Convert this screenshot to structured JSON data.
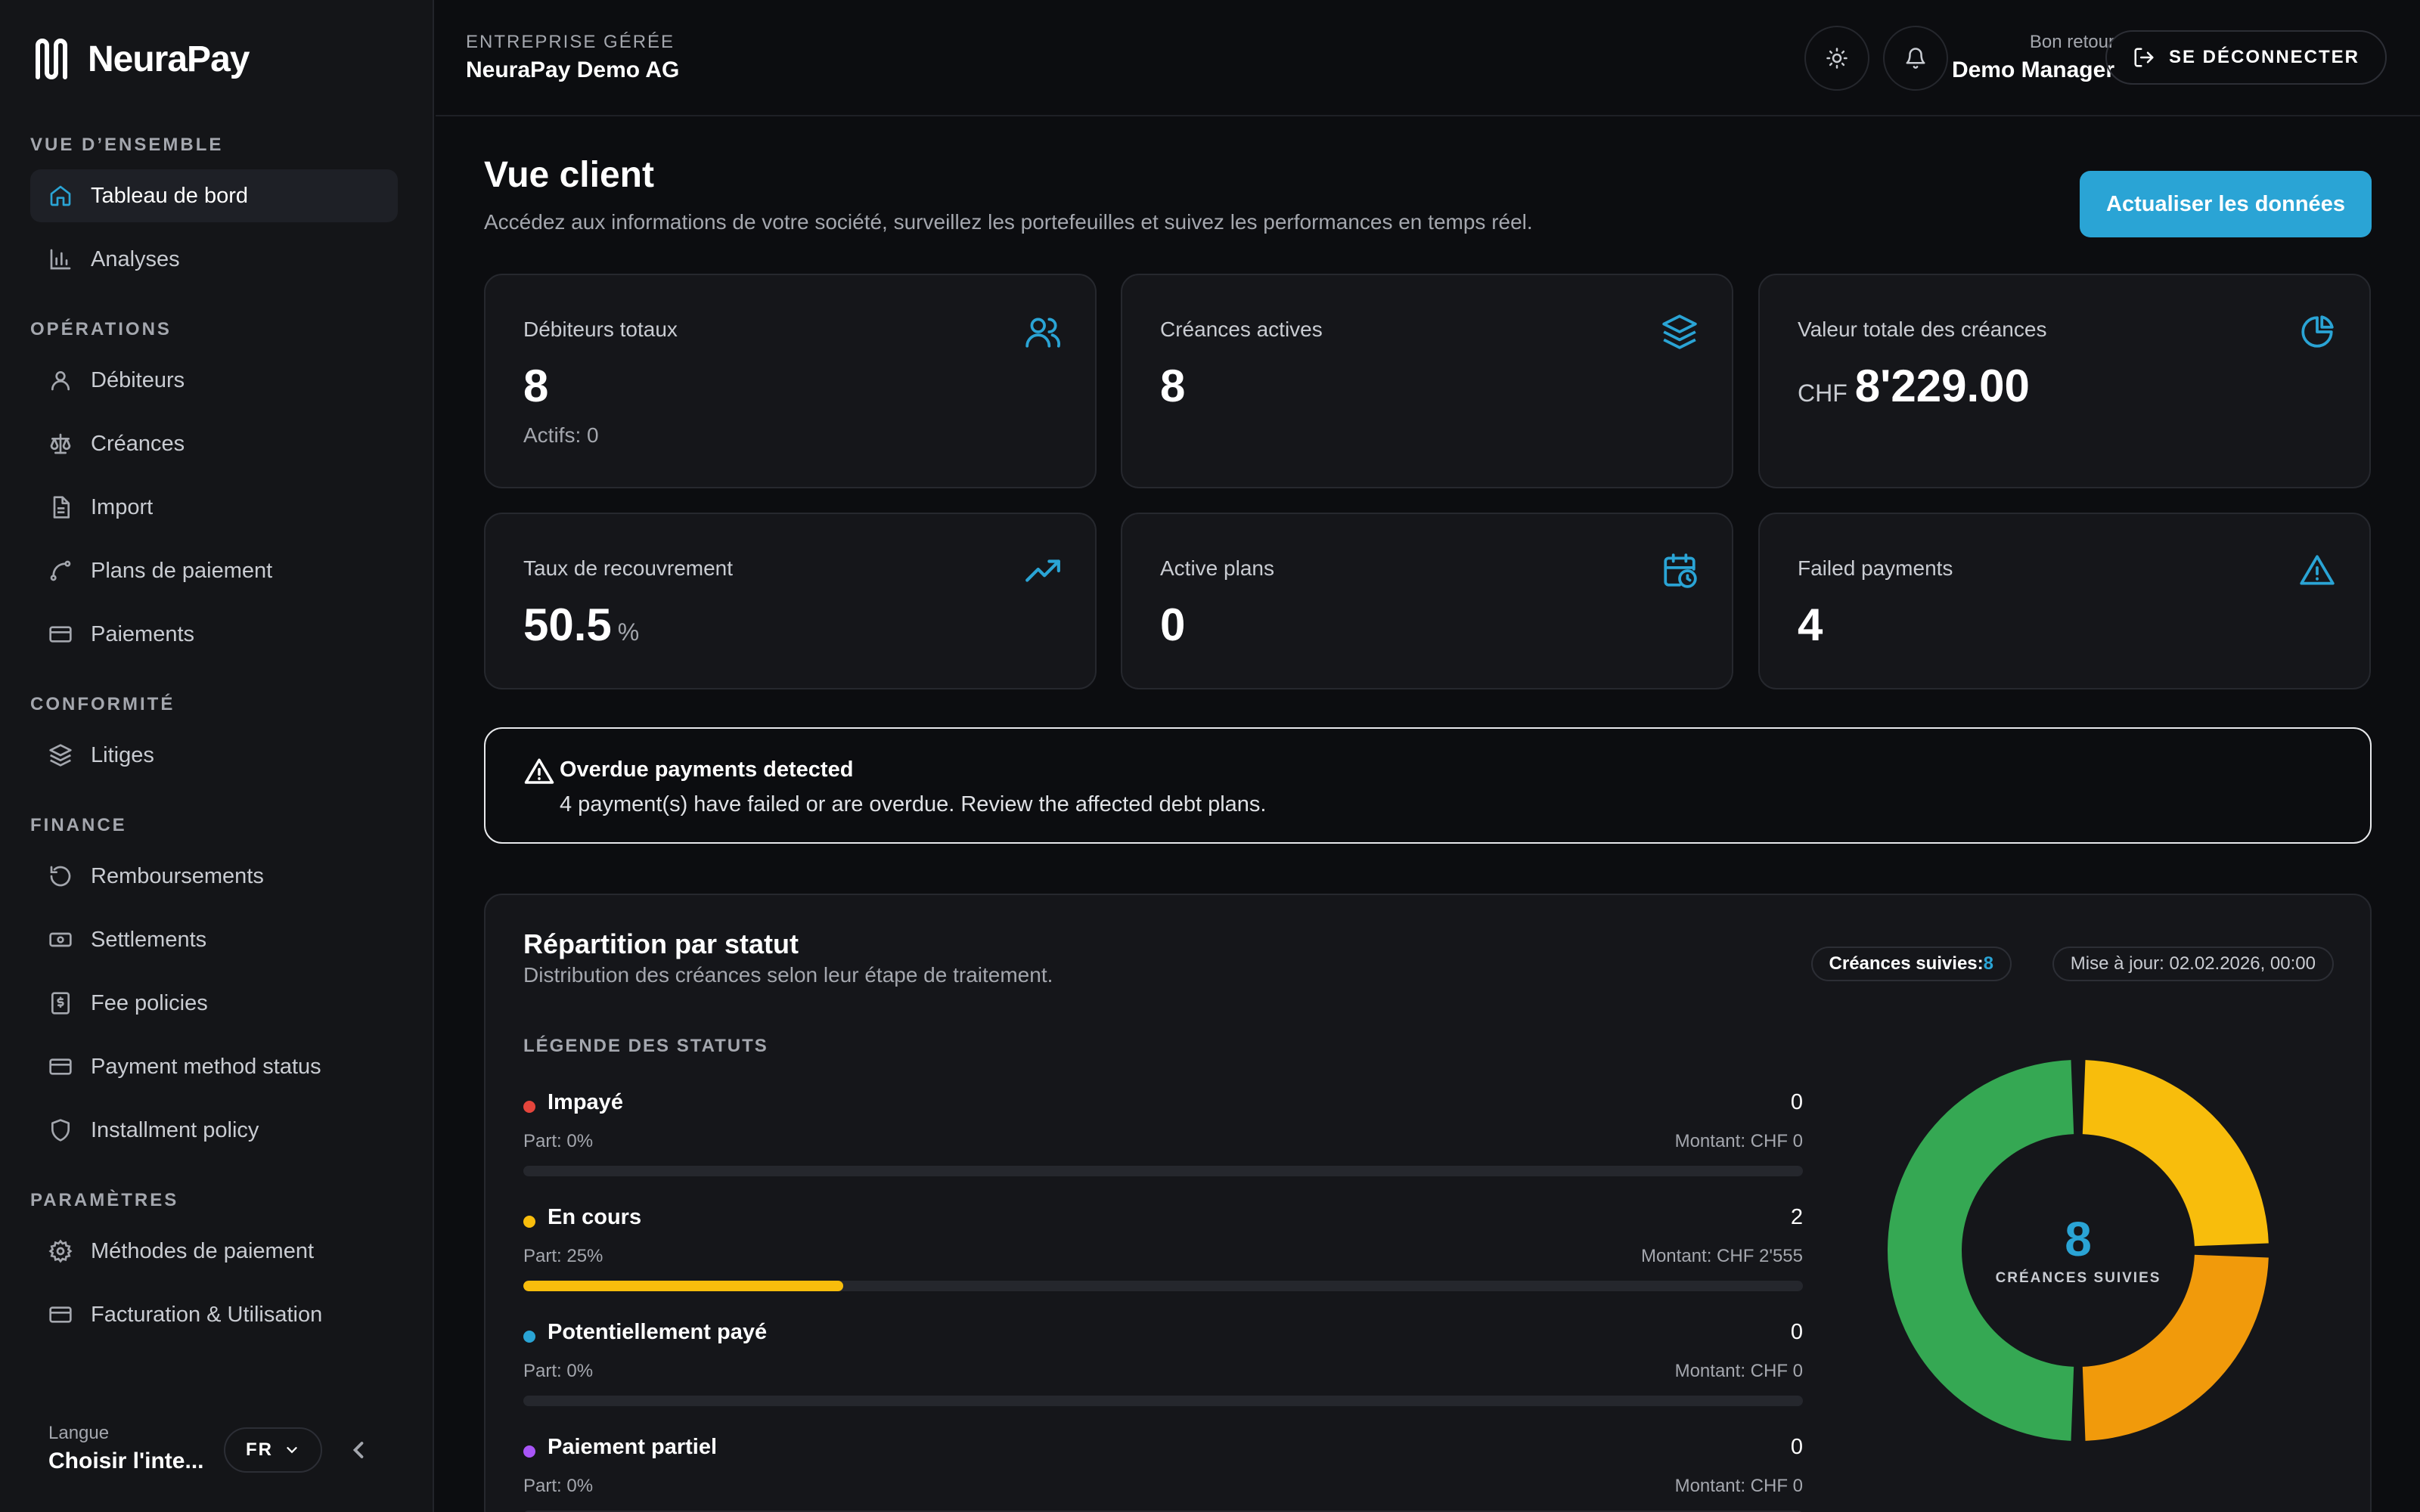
{
  "app": {
    "name": "NeuraPay"
  },
  "sidebar": {
    "sections": [
      {
        "title": "VUE D’ENSEMBLE",
        "items": [
          {
            "label": "Tableau de bord",
            "icon": "home-icon",
            "active": true
          },
          {
            "label": "Analyses",
            "icon": "bar-chart-icon"
          }
        ]
      },
      {
        "title": "OPÉRATIONS",
        "items": [
          {
            "label": "Débiteurs",
            "icon": "user-icon"
          },
          {
            "label": "Créances",
            "icon": "scale-icon"
          },
          {
            "label": "Import",
            "icon": "file-icon"
          },
          {
            "label": "Plans de paiement",
            "icon": "route-icon"
          },
          {
            "label": "Paiements",
            "icon": "card-icon"
          }
        ]
      },
      {
        "title": "CONFORMITÉ",
        "items": [
          {
            "label": "Litiges",
            "icon": "layers-icon"
          }
        ]
      },
      {
        "title": "FINANCE",
        "items": [
          {
            "label": "Remboursements",
            "icon": "rotate-ccw-icon"
          },
          {
            "label": "Settlements",
            "icon": "banknote-icon"
          },
          {
            "label": "Fee policies",
            "icon": "receipt-icon"
          },
          {
            "label": "Payment method status",
            "icon": "card-icon"
          },
          {
            "label": "Installment policy",
            "icon": "shield-icon"
          }
        ]
      },
      {
        "title": "PARAMÈTRES",
        "items": [
          {
            "label": "Méthodes de paiement",
            "icon": "gear-icon"
          },
          {
            "label": "Facturation & Utilisation",
            "icon": "card-icon"
          }
        ]
      }
    ],
    "footer": {
      "language_label": "Langue",
      "language_value": "Choisir l'inte...",
      "language_code": "FR"
    }
  },
  "header": {
    "company_label": "ENTREPRISE GÉRÉE",
    "company_name": "NeuraPay Demo AG",
    "welcome_label": "Bon retour",
    "welcome_name": "Demo Manager",
    "logout_label": "SE DÉCONNECTER"
  },
  "main": {
    "title": "Vue client",
    "subtitle": "Accédez aux informations de votre société, surveillez les portefeuilles et suivez les performances en temps réel.",
    "refresh_label": "Actualiser les données",
    "cards": [
      {
        "label": "Débiteurs totaux",
        "value": "8",
        "sub": "Actifs: 0",
        "icon": "users-icon"
      },
      {
        "label": "Créances actives",
        "value": "8",
        "icon": "layers-icon"
      },
      {
        "label": "Valeur totale des créances",
        "currency": "CHF",
        "value": "8'229.00",
        "icon": "pie-chart-icon"
      },
      {
        "label": "Taux de recouvrement",
        "value": "50.5",
        "unit": "%",
        "icon": "trending-up-icon"
      },
      {
        "label": "Active plans",
        "value": "0",
        "icon": "calendar-clock-icon"
      },
      {
        "label": "Failed payments",
        "value": "4",
        "icon": "alert-triangle-icon"
      }
    ],
    "alert": {
      "title": "Overdue payments detected",
      "text": "4 payment(s) have failed or are overdue. Review the affected debt plans."
    },
    "status_panel": {
      "title": "Répartition par statut",
      "subtitle": "Distribution des créances selon leur étape de traitement.",
      "tracked_label": "Créances suivies:",
      "tracked_value": "8",
      "updated_label": "Mise à jour: 02.02.2026, 00:00",
      "legend_title": "LÉGENDE DES STATUTS",
      "statuses": [
        {
          "name": "Impayé",
          "count": "0",
          "part": "Part: 0%",
          "amount": "Montant: CHF 0",
          "fraction": 0,
          "color": "#e5453c"
        },
        {
          "name": "En cours",
          "count": "2",
          "part": "Part: 25%",
          "amount": "Montant: CHF 2'555",
          "fraction": 0.25,
          "color": "#f8bd0c"
        },
        {
          "name": "Potentiellement payé",
          "count": "0",
          "part": "Part: 0%",
          "amount": "Montant: CHF 0",
          "fraction": 0,
          "color": "#2aa4d5"
        },
        {
          "name": "Paiement partiel",
          "count": "0",
          "part": "Part: 0%",
          "amount": "Montant: CHF 0",
          "fraction": 0,
          "color": "#a855f7"
        }
      ],
      "donut": {
        "center_value": "8",
        "center_label": "CRÉANCES SUIVIES",
        "segments": [
          {
            "fraction": 0.25,
            "color": "#f8bd0c"
          },
          {
            "fraction": 0.25,
            "color": "#f19a0b"
          },
          {
            "fraction": 0.5,
            "color": "#35a853"
          }
        ]
      }
    }
  },
  "colors": {
    "accent": "#2aa4d5",
    "background": "#0c0d10",
    "sidebar": "#141518"
  }
}
